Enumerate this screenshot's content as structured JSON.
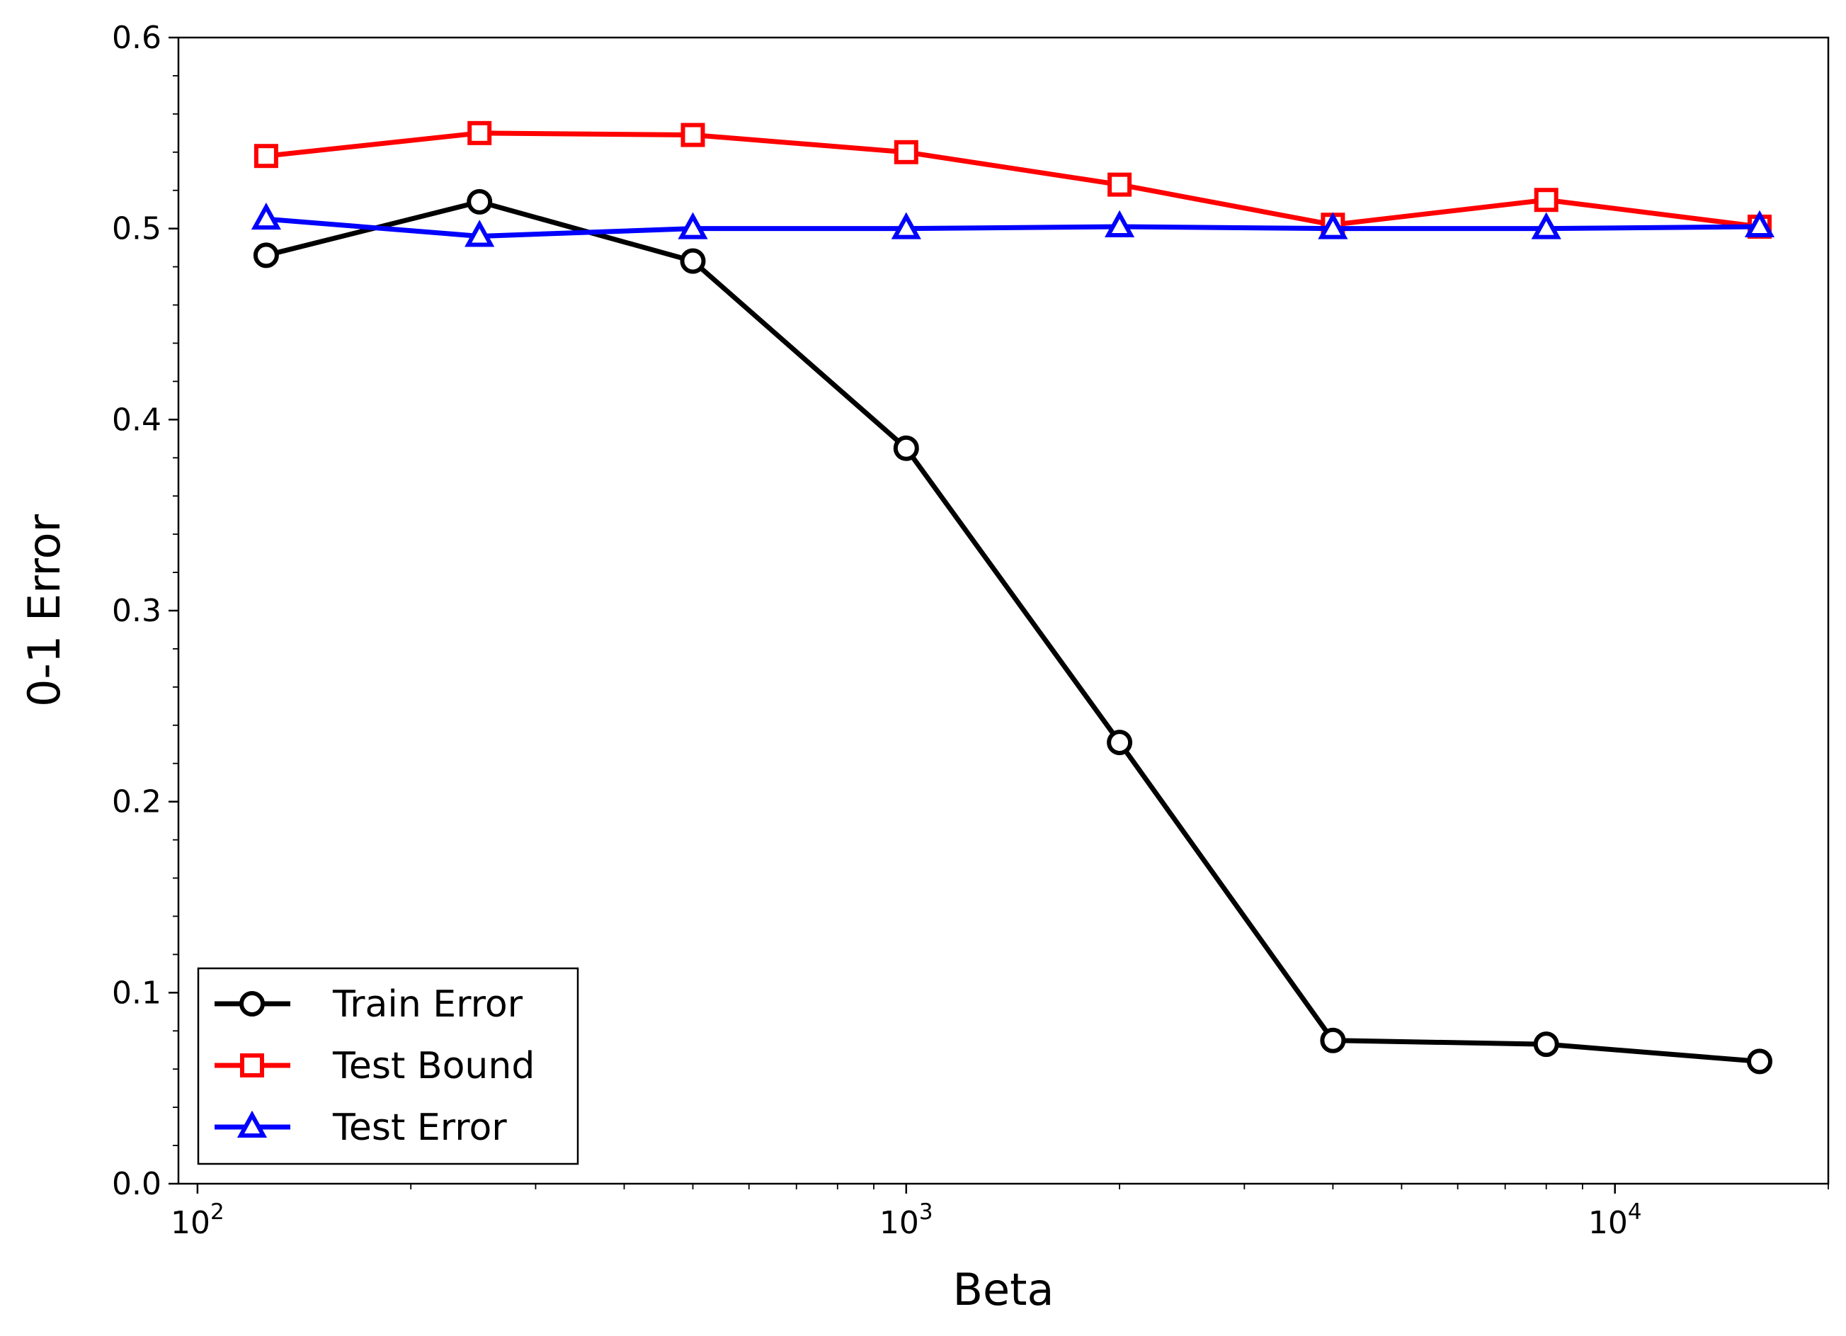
{
  "chart_data": {
    "type": "line",
    "title": "",
    "xlabel": "Beta",
    "ylabel": "0-1 Error",
    "xscale": "log",
    "xlim": [
      94,
      20000
    ],
    "ylim": [
      0.0,
      0.6
    ],
    "yticks": [
      0.0,
      0.1,
      0.2,
      0.3,
      0.4,
      0.5,
      0.6
    ],
    "ytick_labels": [
      "0.0",
      "0.1",
      "0.2",
      "0.3",
      "0.4",
      "0.5",
      "0.6"
    ],
    "xticks": [
      100,
      1000,
      10000
    ],
    "xtick_labels": [
      {
        "base": "10",
        "exp": "2"
      },
      {
        "base": "10",
        "exp": "3"
      },
      {
        "base": "10",
        "exp": "4"
      }
    ],
    "grid": false,
    "legend_position": "lower-left",
    "x": [
      125,
      250,
      500,
      1000,
      2000,
      4000,
      8000,
      16000
    ],
    "series": [
      {
        "name": "Train Error",
        "color": "#000000",
        "marker": "circle",
        "values": [
          0.486,
          0.514,
          0.483,
          0.385,
          0.231,
          0.075,
          0.073,
          0.064
        ]
      },
      {
        "name": "Test Bound",
        "color": "#ff0000",
        "marker": "square",
        "values": [
          0.538,
          0.55,
          0.549,
          0.54,
          0.523,
          0.502,
          0.515,
          0.501
        ]
      },
      {
        "name": "Test Error",
        "color": "#0000ff",
        "marker": "triangle",
        "values": [
          0.505,
          0.496,
          0.5,
          0.5,
          0.501,
          0.5,
          0.5,
          0.501
        ]
      }
    ]
  }
}
